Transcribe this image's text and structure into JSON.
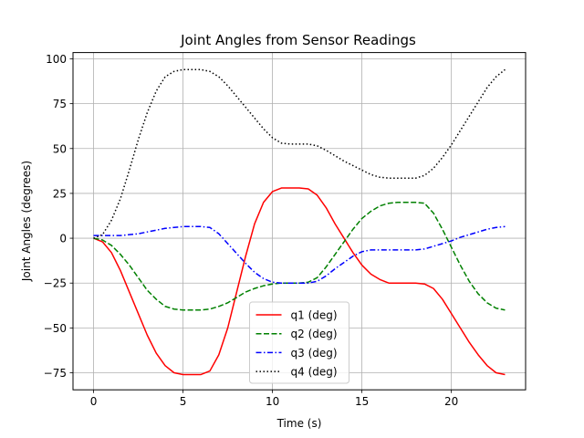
{
  "chart_data": {
    "type": "line",
    "title": "Joint Angles from Sensor Readings",
    "xlabel": "Time (s)",
    "ylabel": "Joint Angles (degrees)",
    "xlim": [
      -1.15,
      24.15
    ],
    "ylim": [
      -84.5,
      103.5
    ],
    "xticks": [
      0,
      5,
      10,
      15,
      20
    ],
    "yticks": [
      -75,
      -50,
      -25,
      0,
      25,
      50,
      75,
      100
    ],
    "grid": true,
    "legend_position": "lower center",
    "series": [
      {
        "name": "q1 (deg)",
        "color": "#ff0000",
        "style": "solid",
        "x": [
          0,
          0.5,
          1,
          1.5,
          2,
          2.5,
          3,
          3.5,
          4,
          4.5,
          5,
          5.5,
          6,
          6.5,
          7,
          7.5,
          8,
          8.5,
          9,
          9.5,
          10,
          10.5,
          11,
          11.5,
          12,
          12.5,
          13,
          13.5,
          14,
          14.5,
          15,
          15.5,
          16,
          16.5,
          17,
          17.5,
          18,
          18.5,
          19,
          19.5,
          20,
          20.5,
          21,
          21.5,
          22,
          22.5,
          23
        ],
        "y": [
          0,
          -2,
          -8,
          -18,
          -30,
          -42,
          -54,
          -64,
          -71,
          -75,
          -76,
          -76,
          -76,
          -74,
          -65,
          -50,
          -30,
          -10,
          8,
          20,
          26,
          28,
          28,
          28,
          27.5,
          24,
          17,
          8,
          0,
          -8,
          -15,
          -20,
          -23,
          -25,
          -25,
          -25,
          -25,
          -25.5,
          -28,
          -34,
          -42,
          -50,
          -58,
          -65,
          -71,
          -75,
          -76
        ]
      },
      {
        "name": "q2 (deg)",
        "color": "#008000",
        "style": "dashed",
        "x": [
          0,
          0.5,
          1,
          1.5,
          2,
          2.5,
          3,
          3.5,
          4,
          4.5,
          5,
          5.5,
          6,
          6.5,
          7,
          7.5,
          8,
          8.5,
          9,
          9.5,
          10,
          10.5,
          11,
          11.5,
          12,
          12.5,
          13,
          13.5,
          14,
          14.5,
          15,
          15.5,
          16,
          16.5,
          17,
          17.5,
          18,
          18.5,
          19,
          19.5,
          20,
          20.5,
          21,
          21.5,
          22,
          22.5,
          23
        ],
        "y": [
          0,
          -1,
          -4,
          -9,
          -15,
          -22,
          -29,
          -34,
          -38,
          -39.5,
          -40,
          -40,
          -40,
          -39.5,
          -38,
          -36,
          -33,
          -30,
          -28,
          -26.5,
          -25.5,
          -25,
          -25,
          -25,
          -24.5,
          -22,
          -16,
          -9,
          -2,
          5,
          11,
          15,
          18,
          19.5,
          20,
          20,
          20,
          19.5,
          14,
          5,
          -5,
          -15,
          -24,
          -31,
          -36,
          -39,
          -40
        ]
      },
      {
        "name": "q3 (deg)",
        "color": "#0000ff",
        "style": "dashdot",
        "x": [
          0,
          0.5,
          1,
          1.5,
          2,
          2.5,
          3,
          3.5,
          4,
          4.5,
          5,
          5.5,
          6,
          6.5,
          7,
          7.5,
          8,
          8.5,
          9,
          9.5,
          10,
          10.5,
          11,
          11.5,
          12,
          12.5,
          13,
          13.5,
          14,
          14.5,
          15,
          15.5,
          16,
          16.5,
          17,
          17.5,
          18,
          18.5,
          19,
          19.5,
          20,
          20.5,
          21,
          21.5,
          22,
          22.5,
          23
        ],
        "y": [
          1.5,
          1.5,
          1.5,
          1.5,
          2,
          2.5,
          3.5,
          4.5,
          5.5,
          6,
          6.5,
          6.5,
          6.5,
          6,
          2.5,
          -3,
          -8.5,
          -14,
          -19,
          -22.5,
          -24.5,
          -25,
          -25,
          -25,
          -25,
          -24,
          -21,
          -17,
          -13.5,
          -10,
          -7.5,
          -6.5,
          -6.5,
          -6.5,
          -6.5,
          -6.5,
          -6.5,
          -6,
          -4.5,
          -3,
          -1.5,
          0.5,
          2,
          3.5,
          5,
          6,
          6.5
        ]
      },
      {
        "name": "q4 (deg)",
        "color": "#000000",
        "style": "dotted",
        "x": [
          0,
          0.5,
          1,
          1.5,
          2,
          2.5,
          3,
          3.5,
          4,
          4.5,
          5,
          5.5,
          6,
          6.5,
          7,
          7.5,
          8,
          8.5,
          9,
          9.5,
          10,
          10.5,
          11,
          11.5,
          12,
          12.5,
          13,
          13.5,
          14,
          14.5,
          15,
          15.5,
          16,
          16.5,
          17,
          17.5,
          18,
          18.5,
          19,
          19.5,
          20,
          20.5,
          21,
          21.5,
          22,
          22.5,
          23
        ],
        "y": [
          0,
          2,
          10,
          22,
          38,
          55,
          70,
          82,
          90,
          93,
          94,
          94,
          94,
          93,
          90,
          85,
          79,
          73,
          67,
          61,
          56,
          53,
          52.5,
          52.5,
          52.5,
          51.5,
          49,
          46,
          43,
          40.5,
          38,
          35.5,
          34,
          33.5,
          33.5,
          33.5,
          33.5,
          35,
          39,
          45,
          52,
          60,
          68,
          76,
          84,
          90,
          94
        ]
      }
    ]
  }
}
